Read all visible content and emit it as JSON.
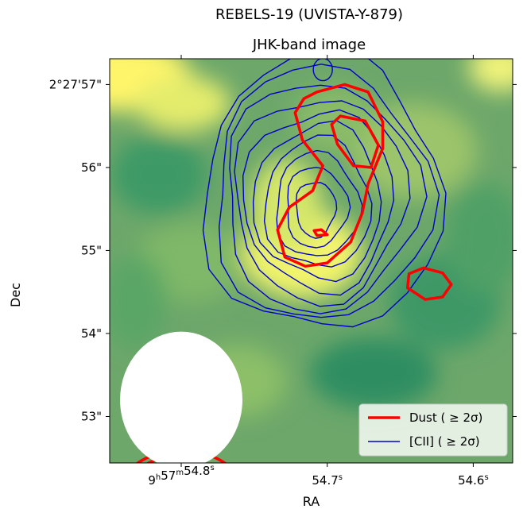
{
  "chart_data": {
    "type": "heatmap",
    "title": "REBELS-19 (UVISTA-Y-879)",
    "subtitle": "JHK-band image",
    "xlabel": "RA",
    "ylabel": "Dec",
    "colormap": "summer-like green to yellow",
    "x_ticks": [
      {
        "value": 54.8,
        "label_html": "9<sup>h</sup>57<sup>m</sup>54.8<sup>s</sup>",
        "parts": [
          "9",
          "h",
          "57",
          "m",
          "54.8",
          "s"
        ]
      },
      {
        "value": 54.7,
        "label_html": "54.7<sup>s</sup>",
        "parts": [
          "54.7",
          "s"
        ]
      },
      {
        "value": 54.6,
        "label_html": "54.6<sup>s</sup>",
        "parts": [
          "54.6",
          "s"
        ]
      }
    ],
    "y_ticks": [
      {
        "value": 57,
        "label": "2°27'57\""
      },
      {
        "value": 56,
        "label": "56\""
      },
      {
        "value": 55,
        "label": "55\""
      },
      {
        "value": 54,
        "label": "54\""
      },
      {
        "value": 53,
        "label": "53\""
      }
    ],
    "xlim": [
      54.849,
      54.573
    ],
    "ylim": [
      52.44,
      57.31
    ],
    "series": [
      {
        "name": "Dust ( ≥ 2σ)",
        "color": "#ff0000",
        "linewidth": "thick",
        "contour_levels": 2
      },
      {
        "name": "[CII] ( ≥ 2σ)",
        "color": "#0000cc",
        "linewidth": "thin",
        "contour_levels": 10
      }
    ],
    "dust_contours": [
      [
        [
          54.707,
          56.91
        ],
        [
          54.688,
          57.0
        ],
        [
          54.672,
          56.91
        ],
        [
          54.662,
          56.55
        ],
        [
          54.662,
          56.23
        ],
        [
          54.672,
          55.8
        ],
        [
          54.676,
          55.45
        ],
        [
          54.684,
          55.1
        ],
        [
          54.7,
          54.85
        ],
        [
          54.715,
          54.81
        ],
        [
          54.729,
          54.92
        ],
        [
          54.734,
          55.25
        ],
        [
          54.726,
          55.52
        ],
        [
          54.71,
          55.72
        ],
        [
          54.703,
          56.02
        ],
        [
          54.717,
          56.33
        ],
        [
          54.722,
          56.66
        ],
        [
          54.716,
          56.83
        ],
        [
          54.707,
          56.91
        ]
      ],
      [
        [
          54.691,
          56.62
        ],
        [
          54.674,
          56.56
        ],
        [
          54.665,
          56.27
        ],
        [
          54.67,
          56.0
        ],
        [
          54.682,
          56.02
        ],
        [
          54.693,
          56.28
        ],
        [
          54.697,
          56.52
        ],
        [
          54.691,
          56.62
        ]
      ],
      [
        [
          54.621,
          54.73
        ],
        [
          54.615,
          54.59
        ],
        [
          54.621,
          54.44
        ],
        [
          54.633,
          54.41
        ],
        [
          54.645,
          54.55
        ],
        [
          54.644,
          54.72
        ],
        [
          54.634,
          54.79
        ],
        [
          54.621,
          54.73
        ]
      ],
      [
        [
          54.704,
          55.25
        ],
        [
          54.7,
          55.19
        ],
        [
          54.707,
          55.18
        ],
        [
          54.709,
          55.24
        ],
        [
          54.704,
          55.25
        ]
      ]
    ],
    "cii_contour_center": [
      54.708,
      55.5
    ],
    "beam": {
      "ra": 54.8,
      "dec": 53.2,
      "fill": "#ffffff"
    },
    "legend_position": "lower right"
  }
}
